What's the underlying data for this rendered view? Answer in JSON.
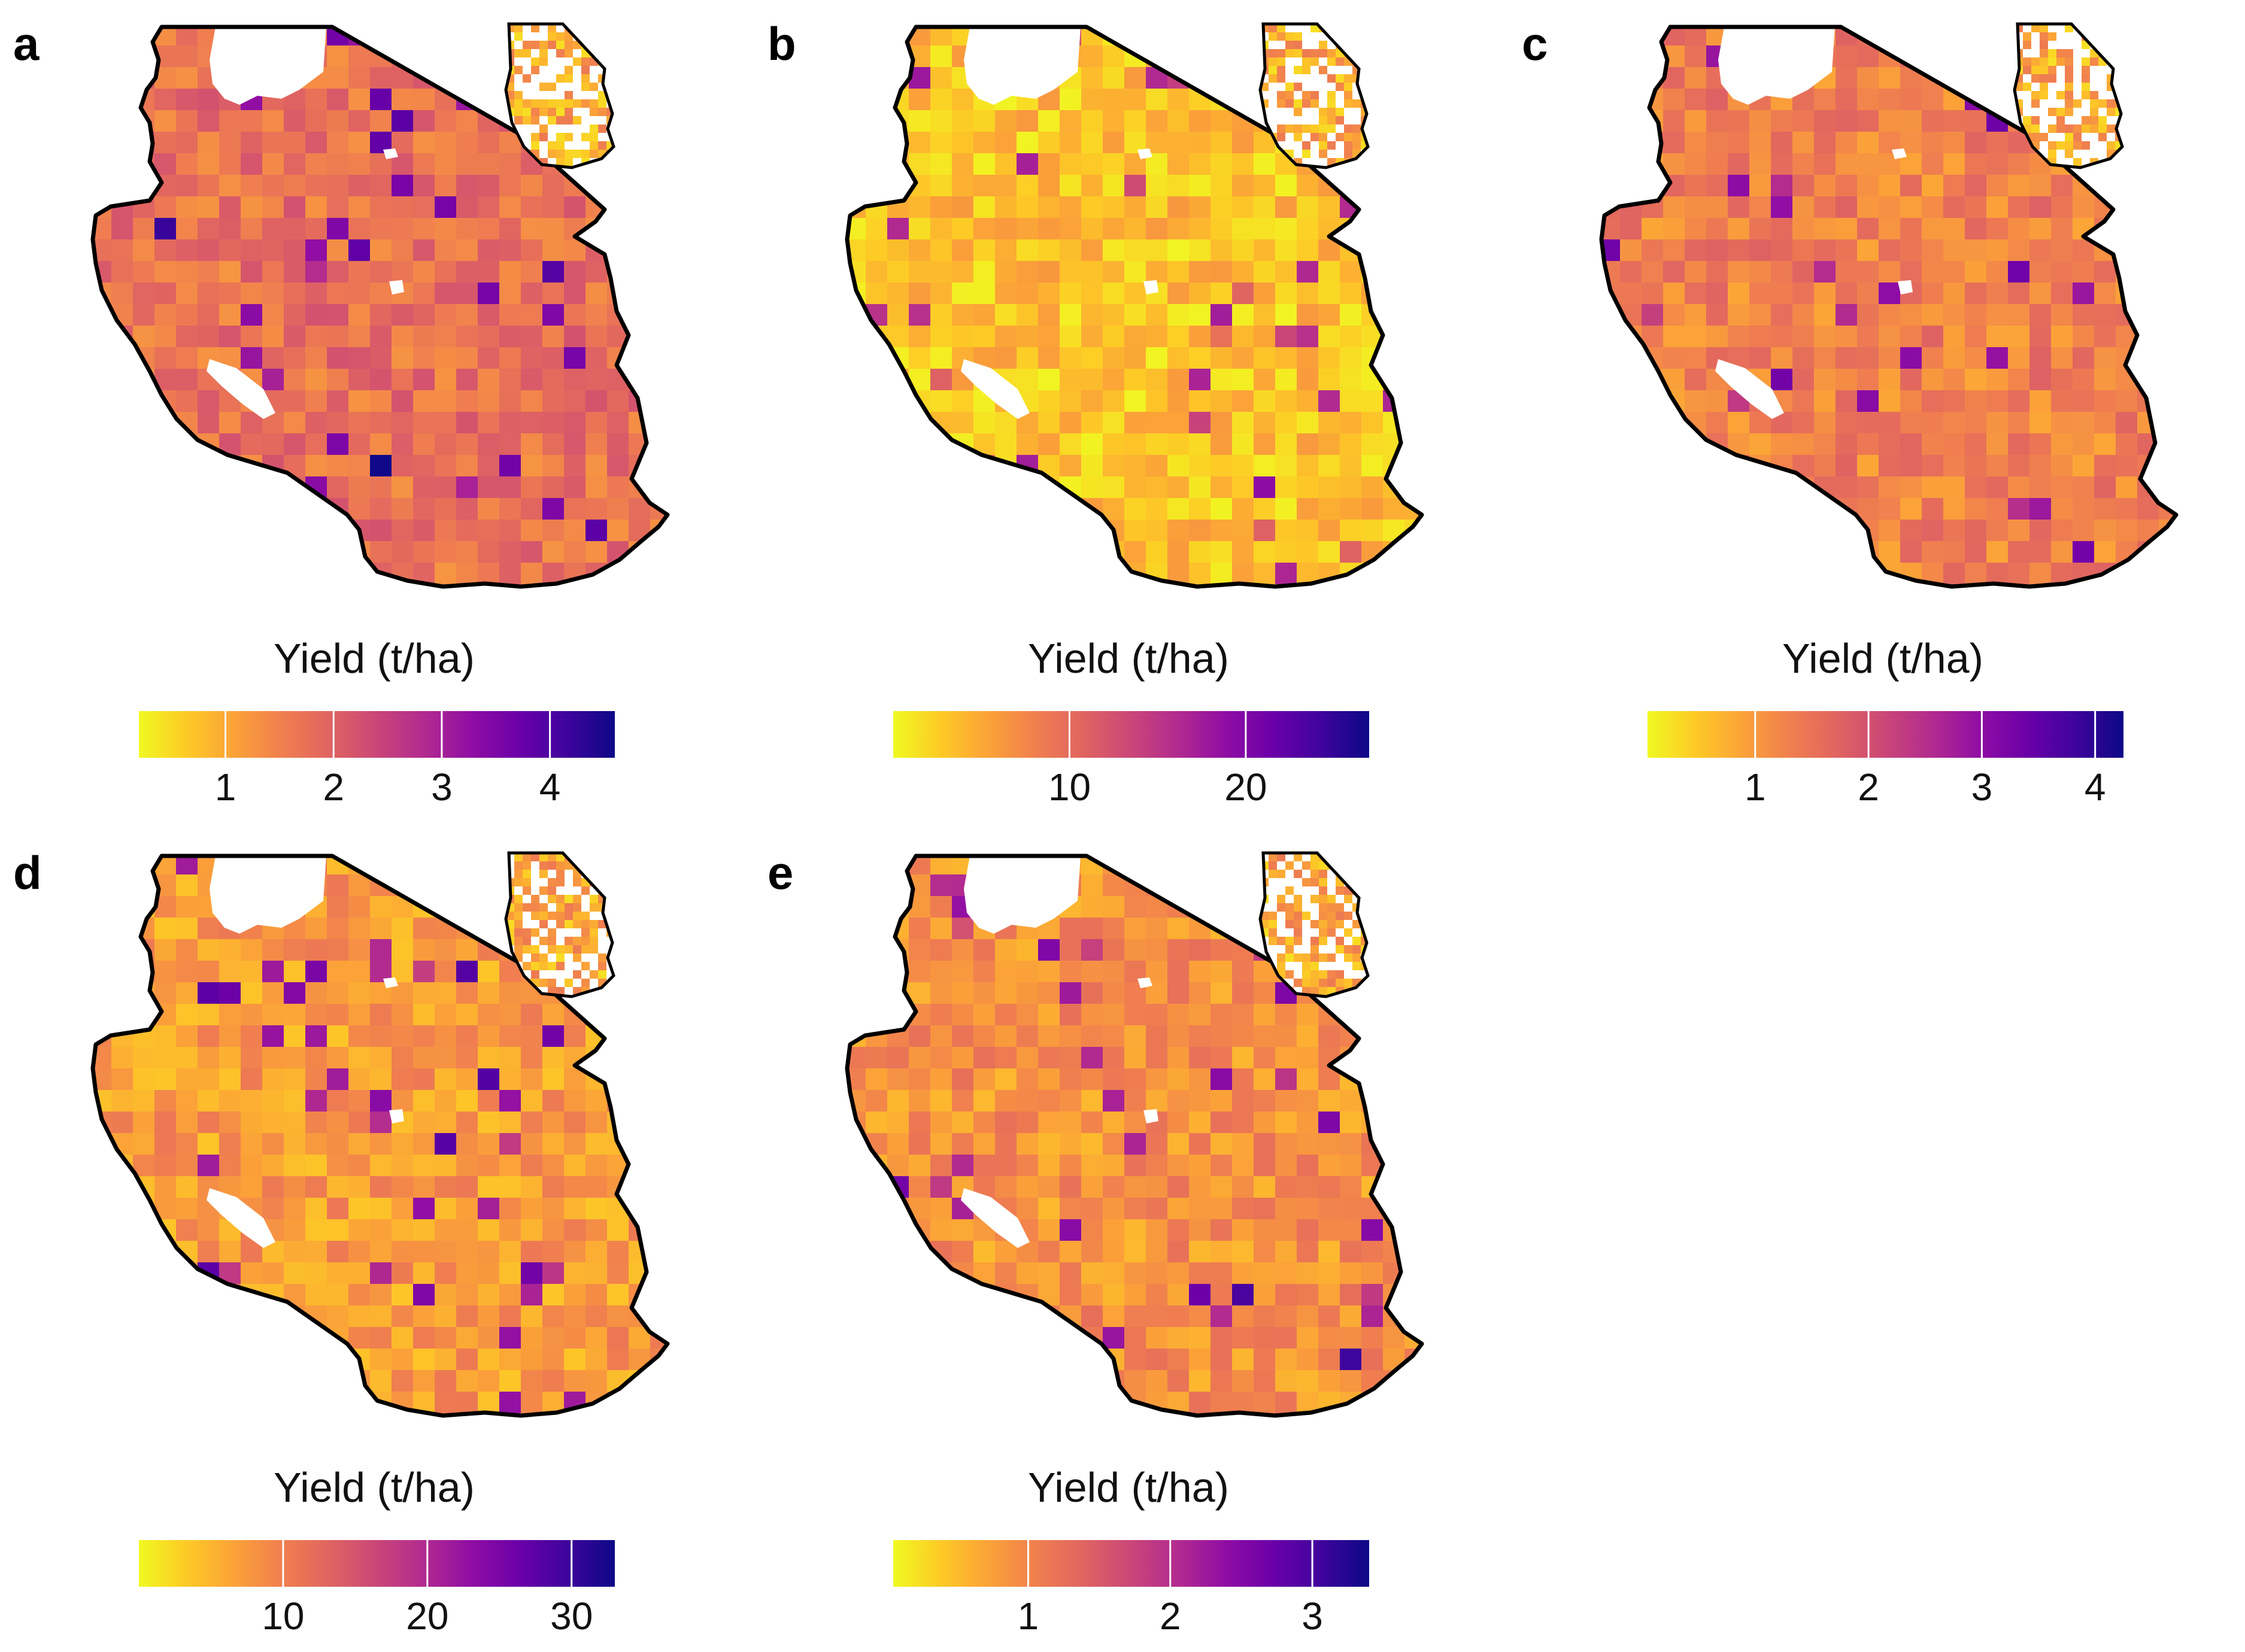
{
  "colors": {
    "border": "#000000",
    "scale": [
      "#f0f921",
      "#fdca26",
      "#fba238",
      "#f07f4f",
      "#e06461",
      "#ca4678",
      "#b12a90",
      "#8f0da4",
      "#6a00a8",
      "#3e049c",
      "#0d0887"
    ]
  },
  "panels": [
    {
      "label": "a",
      "legend_title": "Yield (t/ha)",
      "ticks": [
        {
          "v": 1,
          "label": "1"
        },
        {
          "v": 2,
          "label": "2"
        },
        {
          "v": 3,
          "label": "3"
        },
        {
          "v": 4,
          "label": "4"
        }
      ],
      "range": [
        0.2,
        4.6
      ],
      "mean": 0.35
    },
    {
      "label": "b",
      "legend_title": "Yield (t/ha)",
      "ticks": [
        {
          "v": 10,
          "label": "10"
        },
        {
          "v": 20,
          "label": "20"
        }
      ],
      "range": [
        0,
        27
      ],
      "mean": 0.12
    },
    {
      "label": "c",
      "legend_title": "Yield (t/ha)",
      "ticks": [
        {
          "v": 1,
          "label": "1"
        },
        {
          "v": 2,
          "label": "2"
        },
        {
          "v": 3,
          "label": "3"
        },
        {
          "v": 4,
          "label": "4"
        }
      ],
      "range": [
        0.05,
        4.25
      ],
      "mean": 0.3
    },
    {
      "label": "d",
      "legend_title": "Yield (t/ha)",
      "ticks": [
        {
          "v": 10,
          "label": "10"
        },
        {
          "v": 20,
          "label": "20"
        },
        {
          "v": 30,
          "label": "30"
        }
      ],
      "range": [
        0,
        33
      ],
      "mean": 0.22
    },
    {
      "label": "e",
      "legend_title": "Yield (t/ha)",
      "ticks": [
        {
          "v": 1,
          "label": "1"
        },
        {
          "v": 2,
          "label": "2"
        },
        {
          "v": 3,
          "label": "3"
        }
      ],
      "range": [
        0.05,
        3.4
      ],
      "mean": 0.25
    }
  ]
}
